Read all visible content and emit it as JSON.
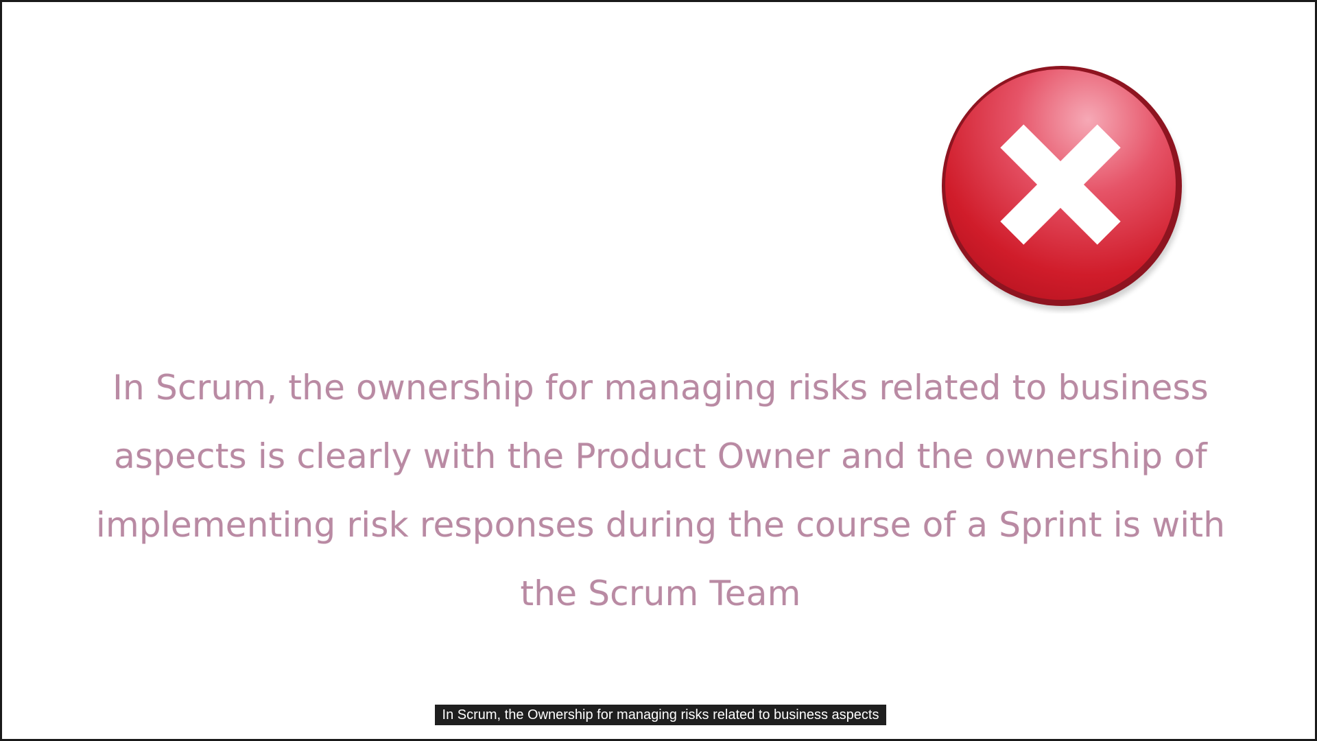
{
  "slide": {
    "icon": "close-x-circle-icon",
    "statement": "In Scrum, the ownership for managing risks related to business aspects is clearly with the Product Owner and the ownership of implementing risk responses during the course of a Sprint is with the Scrum Team",
    "text_color": "#b98aa3"
  },
  "caption": {
    "text": "In Scrum, the Ownership for managing risks related to business aspects"
  },
  "colors": {
    "icon_red": "#d21f2b",
    "icon_rim": "#8e1420",
    "background": "#ffffff",
    "caption_bg": "#1f1f1f"
  }
}
